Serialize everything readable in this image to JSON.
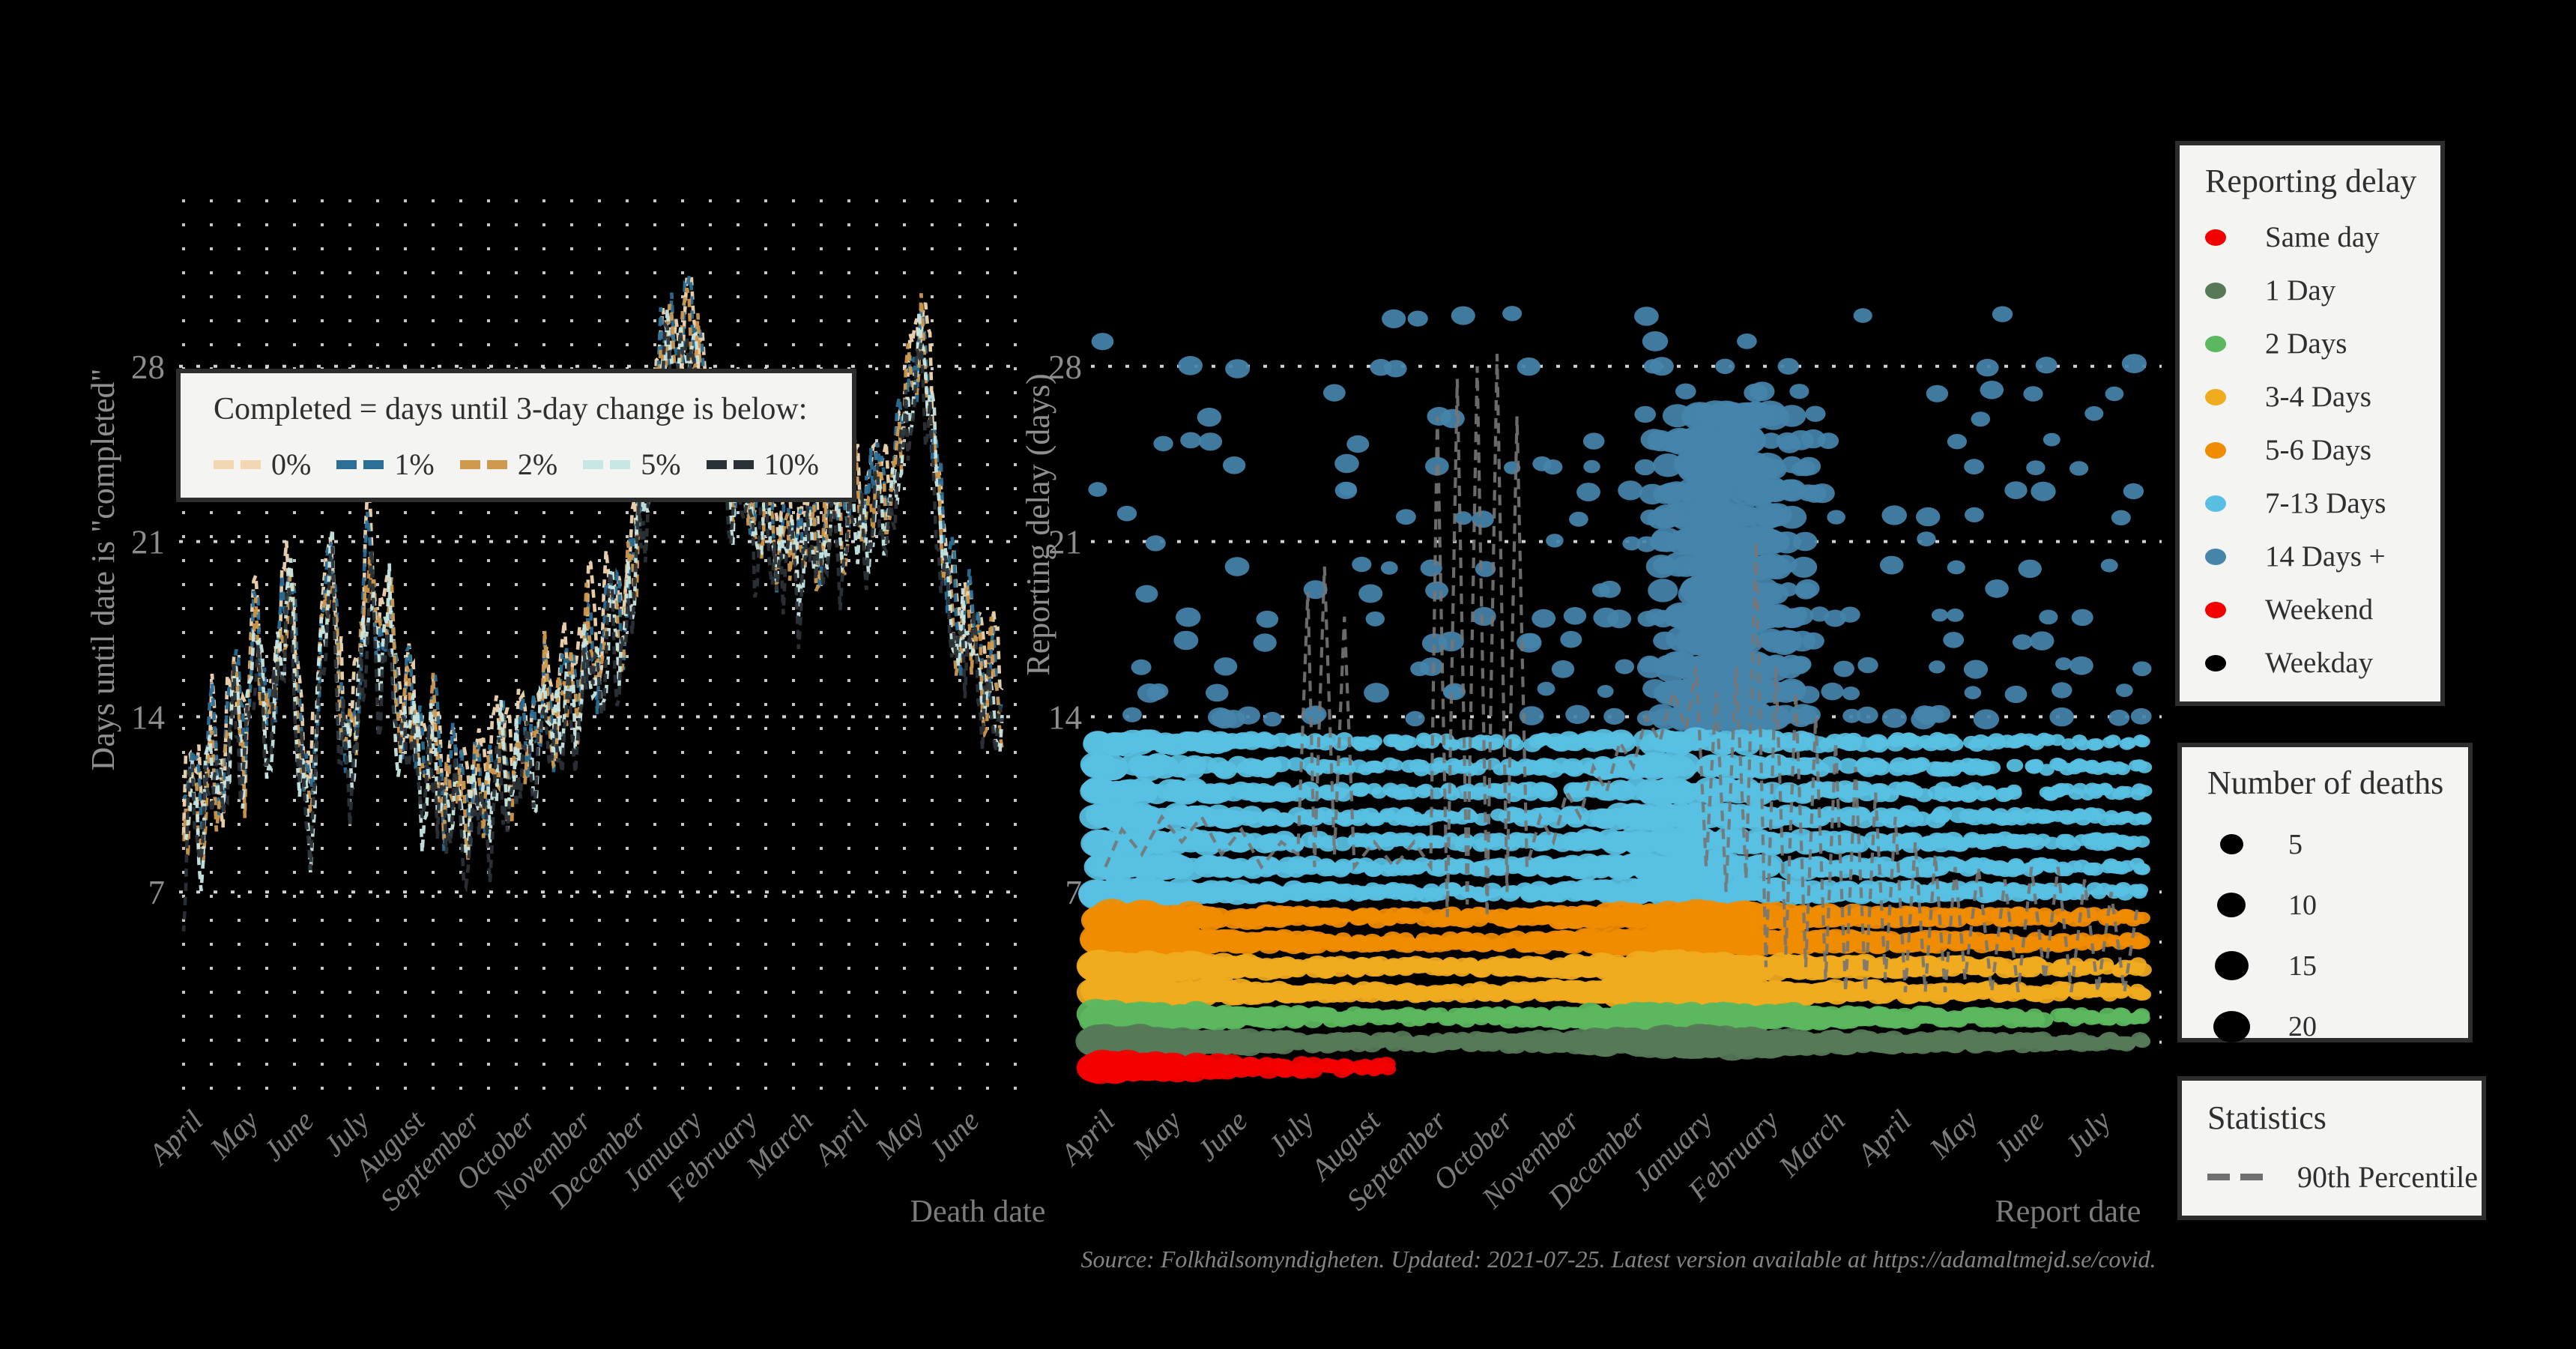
{
  "source_note": "Source: Folkhälsomyndigheten. Updated: 2021-07-25. Latest version available at https://adamaltmejd.se/covid.",
  "left_chart": {
    "y_title": "Days until date is \"completed\"",
    "x_title": "Death date",
    "legend": {
      "title": "Completed = days until 3-day change is below:",
      "items": [
        {
          "label": "0%",
          "color": "#f2d7b0"
        },
        {
          "label": "1%",
          "color": "#2c6f96"
        },
        {
          "label": "2%",
          "color": "#d0994d"
        },
        {
          "label": "5%",
          "color": "#c7e7e4"
        },
        {
          "label": "10%",
          "color": "#2b3237"
        }
      ]
    }
  },
  "right_chart": {
    "y_title": "Reporting delay (days)",
    "x_title": "Report date"
  },
  "legends": {
    "reporting_delay": {
      "title": "Reporting delay",
      "items": [
        {
          "label": "Same day",
          "color": "#f40000"
        },
        {
          "label": "1 Day",
          "color": "#567a57"
        },
        {
          "label": "2 Days",
          "color": "#5bb85f"
        },
        {
          "label": "3-4 Days",
          "color": "#f0ab1e"
        },
        {
          "label": "5-6 Days",
          "color": "#f08c00"
        },
        {
          "label": "7-13 Days",
          "color": "#58bfe2"
        },
        {
          "label": "14 Days +",
          "color": "#4584ab"
        },
        {
          "label": "Weekend",
          "color": "#f40000"
        },
        {
          "label": "Weekday",
          "color": "#000000"
        }
      ]
    },
    "number_of_deaths": {
      "title": "Number of deaths",
      "items": [
        {
          "label": "5",
          "diameter": 31
        },
        {
          "label": "10",
          "diameter": 38
        },
        {
          "label": "15",
          "diameter": 45
        },
        {
          "label": "20",
          "diameter": 49
        }
      ]
    },
    "statistics": {
      "title": "Statistics",
      "items": [
        {
          "label": "90th Percentile",
          "color": "#6f6f6f"
        }
      ]
    }
  },
  "chart_data": [
    {
      "id": "completed-days-lines",
      "type": "line",
      "title": "",
      "xlabel": "Death date",
      "ylabel": "Days until date is \"completed\"",
      "x_axis": {
        "unit": "months_since_2020-04",
        "range": [
          0,
          14.8
        ],
        "month_labels": [
          "April",
          "May",
          "June",
          "July",
          "August",
          "September",
          "October",
          "November",
          "December",
          "January",
          "February",
          "March",
          "April",
          "May",
          "June"
        ]
      },
      "y_axis": {
        "ticks": [
          7,
          14,
          21,
          28
        ],
        "ylim": [
          4,
          32
        ],
        "grid": "dotted"
      },
      "base_curve": [
        [
          0,
          8.5
        ],
        [
          0.15,
          12
        ],
        [
          0.3,
          9
        ],
        [
          0.5,
          13
        ],
        [
          0.7,
          10
        ],
        [
          0.9,
          16
        ],
        [
          1.1,
          12
        ],
        [
          1.3,
          18.5
        ],
        [
          1.5,
          13
        ],
        [
          1.7,
          16
        ],
        [
          1.9,
          19.5
        ],
        [
          2.1,
          13
        ],
        [
          2.3,
          10
        ],
        [
          2.5,
          17
        ],
        [
          2.65,
          21
        ],
        [
          2.8,
          15
        ],
        [
          3,
          12
        ],
        [
          3.2,
          16
        ],
        [
          3.35,
          21
        ],
        [
          3.5,
          16
        ],
        [
          3.7,
          18.5
        ],
        [
          3.9,
          13
        ],
        [
          4.1,
          15
        ],
        [
          4.3,
          11
        ],
        [
          4.5,
          13.5
        ],
        [
          4.7,
          10
        ],
        [
          4.9,
          12.5
        ],
        [
          5.1,
          9
        ],
        [
          5.3,
          12
        ],
        [
          5.5,
          10
        ],
        [
          5.7,
          13
        ],
        [
          5.9,
          11
        ],
        [
          6.1,
          14
        ],
        [
          6.3,
          12
        ],
        [
          6.5,
          15.5
        ],
        [
          6.7,
          13
        ],
        [
          6.9,
          16
        ],
        [
          7.1,
          14
        ],
        [
          7.3,
          17.5
        ],
        [
          7.5,
          15
        ],
        [
          7.7,
          19
        ],
        [
          7.9,
          17
        ],
        [
          8.1,
          20
        ],
        [
          8.3,
          23
        ],
        [
          8.5,
          26
        ],
        [
          8.7,
          29.5
        ],
        [
          8.9,
          27
        ],
        [
          9.1,
          30.5
        ],
        [
          9.3,
          28
        ],
        [
          9.5,
          24
        ],
        [
          9.7,
          26.5
        ],
        [
          9.9,
          23
        ],
        [
          10.1,
          25
        ],
        [
          10.3,
          21
        ],
        [
          10.5,
          23.5
        ],
        [
          10.7,
          20
        ],
        [
          10.9,
          22
        ],
        [
          11.1,
          19.5
        ],
        [
          11.3,
          22
        ],
        [
          11.5,
          20
        ],
        [
          11.7,
          23
        ],
        [
          11.9,
          21
        ],
        [
          12.1,
          23.5
        ],
        [
          12.3,
          21
        ],
        [
          12.5,
          24
        ],
        [
          12.7,
          22
        ],
        [
          12.9,
          25
        ],
        [
          13.1,
          27
        ],
        [
          13.3,
          29
        ],
        [
          13.45,
          27
        ],
        [
          13.6,
          23
        ],
        [
          13.8,
          19
        ],
        [
          14,
          17
        ],
        [
          14.2,
          18
        ],
        [
          14.4,
          15
        ],
        [
          14.6,
          16
        ],
        [
          14.8,
          13.5
        ]
      ],
      "series": [
        {
          "name": "0%",
          "color": "#f2d7b0",
          "offset": 1.2,
          "seed": 101
        },
        {
          "name": "1%",
          "color": "#2c6f96",
          "offset": 0.6,
          "seed": 102
        },
        {
          "name": "2%",
          "color": "#d0994d",
          "offset": 0.1,
          "seed": 103
        },
        {
          "name": "5%",
          "color": "#c7e7e4",
          "offset": -0.4,
          "seed": 104
        },
        {
          "name": "10%",
          "color": "#2b3237",
          "offset": -1.0,
          "seed": 105
        }
      ]
    },
    {
      "id": "reporting-delay-bubbles",
      "type": "scatter",
      "xlabel": "Report date",
      "ylabel": "Reporting delay (days)",
      "x_axis": {
        "unit": "months_since_2020-04",
        "range": [
          0,
          15.8
        ],
        "month_labels": [
          "April",
          "May",
          "June",
          "July",
          "August",
          "September",
          "October",
          "November",
          "December",
          "January",
          "February",
          "March",
          "April",
          "May",
          "June",
          "July"
        ]
      },
      "y_axis": {
        "ticks": [
          7,
          14,
          21,
          28
        ],
        "gridlines": [
          1,
          2,
          3,
          5,
          7,
          14,
          21,
          28
        ],
        "ylim": [
          -0.5,
          31
        ],
        "grid": "dotted"
      },
      "size_legend": {
        "deaths": [
          5,
          10,
          15,
          20
        ],
        "radius_k": 5.6,
        "radius_c": 3
      },
      "deaths_profile": [
        [
          0,
          17
        ],
        [
          0.5,
          15
        ],
        [
          1,
          13
        ],
        [
          1.5,
          11
        ],
        [
          2,
          8
        ],
        [
          2.5,
          6
        ],
        [
          3,
          5
        ],
        [
          3.5,
          4
        ],
        [
          4,
          3.5
        ],
        [
          5,
          3
        ],
        [
          6,
          3.5
        ],
        [
          6.5,
          4.5
        ],
        [
          7,
          6
        ],
        [
          7.5,
          8
        ],
        [
          8,
          11
        ],
        [
          8.5,
          14
        ],
        [
          9,
          16
        ],
        [
          9.5,
          14
        ],
        [
          10,
          11
        ],
        [
          10.5,
          9
        ],
        [
          11,
          7
        ],
        [
          11.5,
          6
        ],
        [
          12,
          5.5
        ],
        [
          12.5,
          5
        ],
        [
          13,
          4.5
        ],
        [
          13.5,
          4
        ],
        [
          14,
          3.5
        ],
        [
          14.5,
          3
        ],
        [
          15,
          2.6
        ],
        [
          15.8,
          2.2
        ]
      ],
      "bands": [
        {
          "name": "14-days-plus-sparse",
          "kind": "sparse",
          "color": "#4584ab",
          "start": 0,
          "end": 15.8,
          "seed": 71,
          "chance": 0.4,
          "y_min": 14,
          "y_max": 30
        },
        {
          "name": "14-days-plus-cluster",
          "kind": "cluster",
          "color": "#4584ab",
          "start": 8.3,
          "end": 10.9,
          "seed": 81,
          "rows_from": 14,
          "rows_to": 26,
          "density_keys": [
            [
              8.3,
              0.2
            ],
            [
              8.8,
              0.55
            ],
            [
              9.2,
              0.95
            ],
            [
              9.9,
              0.9
            ],
            [
              10.3,
              0.5
            ],
            [
              10.9,
              0.15
            ]
          ],
          "deaths_keys": [
            [
              8.3,
              5
            ],
            [
              9,
              12
            ],
            [
              9.4,
              16
            ],
            [
              9.9,
              13
            ],
            [
              10.3,
              8
            ],
            [
              10.9,
              4
            ]
          ]
        },
        {
          "name": "7-13-days",
          "kind": "rows",
          "color": "#58bfe2",
          "rows": [
            7,
            8,
            9,
            10,
            11,
            12,
            13
          ],
          "start": 0,
          "end": 15.8,
          "skip": 0.26,
          "seed": 61,
          "mult": 0.78,
          "row_falloff": 0.045
        },
        {
          "name": "5-6-days",
          "kind": "rows",
          "color": "#f08c00",
          "rows": [
            5,
            6
          ],
          "start": 0,
          "end": 15.8,
          "skip": 0.24,
          "seed": 51,
          "mult": 0.9
        },
        {
          "name": "3-4-days",
          "kind": "rows",
          "color": "#f0ab1e",
          "rows": [
            3,
            4
          ],
          "start": 0,
          "end": 15.8,
          "skip": 0.2,
          "seed": 41,
          "mult": 0.95
        },
        {
          "name": "2-days",
          "kind": "rows",
          "color": "#5bb85f",
          "rows": [
            2
          ],
          "start": 0,
          "end": 15.8,
          "skip": 0.22,
          "seed": 31,
          "mult": 0.85
        },
        {
          "name": "1-day",
          "kind": "rows",
          "color": "#567a57",
          "rows": [
            1
          ],
          "start": 0,
          "end": 15.8,
          "skip": 0.18,
          "seed": 21,
          "mult": 1
        },
        {
          "name": "same-day",
          "kind": "rows",
          "color": "#f40000",
          "rows": [
            0
          ],
          "start": 0,
          "end": 4.4,
          "skip": 0.3,
          "seed": 11,
          "mult": 1,
          "deaths": [
            [
              0,
              16
            ],
            [
              0.5,
              13
            ],
            [
              1,
              10
            ],
            [
              1.5,
              8
            ],
            [
              2,
              6
            ],
            [
              2.5,
              5
            ],
            [
              3,
              4
            ],
            [
              3.5,
              3
            ],
            [
              4,
              2.5
            ],
            [
              4.4,
              2.5
            ]
          ]
        }
      ],
      "percentile_90": [
        [
          0.15,
          8
        ],
        [
          0.4,
          9.5
        ],
        [
          0.7,
          8.5
        ],
        [
          1,
          10
        ],
        [
          1.3,
          9
        ],
        [
          1.6,
          10
        ],
        [
          1.9,
          8.5
        ],
        [
          2.2,
          9.5
        ],
        [
          2.5,
          8
        ],
        [
          2.8,
          9
        ],
        [
          3.05,
          8.5
        ],
        [
          3.2,
          19
        ],
        [
          3.3,
          8
        ],
        [
          3.45,
          20
        ],
        [
          3.6,
          8.5
        ],
        [
          3.75,
          18
        ],
        [
          3.9,
          8
        ],
        [
          4.2,
          9
        ],
        [
          4.5,
          8
        ],
        [
          4.8,
          9
        ],
        [
          5.05,
          8
        ],
        [
          5.15,
          26
        ],
        [
          5.3,
          6
        ],
        [
          5.45,
          27.5
        ],
        [
          5.6,
          6.5
        ],
        [
          5.75,
          28
        ],
        [
          5.9,
          6
        ],
        [
          6.05,
          28.5
        ],
        [
          6.2,
          7
        ],
        [
          6.35,
          26
        ],
        [
          6.5,
          8
        ],
        [
          6.7,
          10
        ],
        [
          6.9,
          9
        ],
        [
          7.1,
          11
        ],
        [
          7.3,
          10
        ],
        [
          7.5,
          12
        ],
        [
          7.7,
          11
        ],
        [
          7.9,
          13
        ],
        [
          8.1,
          12
        ],
        [
          8.3,
          14
        ],
        [
          8.5,
          13
        ],
        [
          8.7,
          15
        ],
        [
          8.9,
          13.5
        ],
        [
          9.05,
          16
        ],
        [
          9.2,
          8
        ],
        [
          9.35,
          15
        ],
        [
          9.5,
          7
        ],
        [
          9.65,
          16
        ],
        [
          9.8,
          7.5
        ],
        [
          9.95,
          21
        ],
        [
          10.1,
          4
        ],
        [
          10.25,
          16
        ],
        [
          10.4,
          4.5
        ],
        [
          10.55,
          15
        ],
        [
          10.7,
          4
        ],
        [
          10.85,
          14
        ],
        [
          11,
          3.5
        ],
        [
          11.15,
          13
        ],
        [
          11.3,
          3
        ],
        [
          11.45,
          12
        ],
        [
          11.6,
          3
        ],
        [
          11.75,
          11
        ],
        [
          11.9,
          3.5
        ],
        [
          12.05,
          10
        ],
        [
          12.2,
          3
        ],
        [
          12.35,
          9
        ],
        [
          12.5,
          3
        ],
        [
          12.65,
          8.5
        ],
        [
          12.8,
          3
        ],
        [
          12.95,
          8
        ],
        [
          13.1,
          3.5
        ],
        [
          13.3,
          8
        ],
        [
          13.5,
          3
        ],
        [
          13.7,
          7.5
        ],
        [
          13.9,
          3
        ],
        [
          14.1,
          8
        ],
        [
          14.3,
          3.5
        ],
        [
          14.5,
          8
        ],
        [
          14.7,
          3
        ],
        [
          14.9,
          7.5
        ],
        [
          15.1,
          3
        ],
        [
          15.3,
          7
        ],
        [
          15.5,
          3
        ],
        [
          15.7,
          6.5
        ]
      ]
    }
  ]
}
